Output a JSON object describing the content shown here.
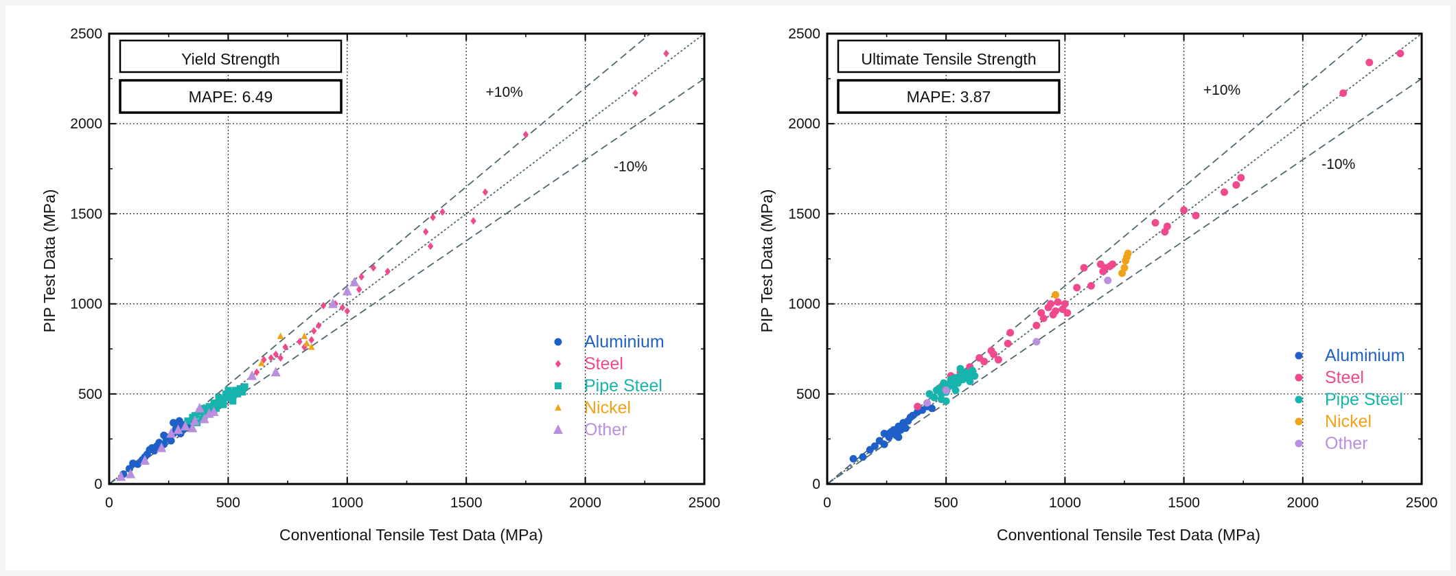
{
  "figure": {
    "colors": {
      "aluminium": "#1f5fc8",
      "steel": "#ee4a8d",
      "pipe_steel": "#17b3ad",
      "nickel": "#f0a21a",
      "other": "#b98fde",
      "ref_line": "#4e6770"
    }
  },
  "chart_data": [
    {
      "type": "scatter",
      "title": "Yield Strength",
      "mape_label": "MAPE: 6.49",
      "xlabel": "Conventional Tensile Test Data (MPa)",
      "ylabel": "PIP Test Data (MPa)",
      "xlim": [
        0,
        2500
      ],
      "ylim": [
        0,
        2500
      ],
      "xticks": [
        0,
        500,
        1000,
        1500,
        2000,
        2500
      ],
      "yticks": [
        0,
        500,
        1000,
        1500,
        2000,
        2500
      ],
      "grid": true,
      "legend_position": "bottom-right",
      "annotations": [
        {
          "text": "+10%",
          "x": 1660,
          "y": 2150
        },
        {
          "text": "-10%",
          "x": 2190,
          "y": 1735
        }
      ],
      "reference_lines": [
        {
          "name": "+10%",
          "slope": 1.1,
          "style": "dashed"
        },
        {
          "name": "1:1",
          "slope": 1.0,
          "style": "dotted"
        },
        {
          "name": "-10%",
          "slope": 0.9,
          "style": "dashed"
        }
      ],
      "series": [
        {
          "name": "Aluminium",
          "color_key": "aluminium",
          "marker": "circle",
          "points": [
            [
              60,
              55
            ],
            [
              85,
              85
            ],
            [
              100,
              115
            ],
            [
              120,
              110
            ],
            [
              140,
              135
            ],
            [
              160,
              165
            ],
            [
              170,
              190
            ],
            [
              190,
              185
            ],
            [
              200,
              210
            ],
            [
              210,
              230
            ],
            [
              230,
              220
            ],
            [
              240,
              250
            ],
            [
              250,
              260
            ],
            [
              260,
              240
            ],
            [
              270,
              280
            ],
            [
              280,
              305
            ],
            [
              290,
              320
            ],
            [
              300,
              280
            ],
            [
              310,
              300
            ],
            [
              320,
              330
            ],
            [
              330,
              340
            ],
            [
              340,
              310
            ],
            [
              350,
              360
            ],
            [
              230,
              270
            ],
            [
              270,
              340
            ],
            [
              295,
              350
            ],
            [
              180,
              200
            ],
            [
              150,
              150
            ]
          ]
        },
        {
          "name": "Steel",
          "color_key": "steel",
          "marker": "diamond",
          "points": [
            [
              560,
              540
            ],
            [
              600,
              600
            ],
            [
              620,
              620
            ],
            [
              650,
              690
            ],
            [
              680,
              700
            ],
            [
              700,
              720
            ],
            [
              720,
              700
            ],
            [
              740,
              760
            ],
            [
              800,
              790
            ],
            [
              820,
              760
            ],
            [
              850,
              800
            ],
            [
              860,
              850
            ],
            [
              880,
              880
            ],
            [
              900,
              990
            ],
            [
              950,
              1000
            ],
            [
              980,
              980
            ],
            [
              1000,
              960
            ],
            [
              1050,
              1080
            ],
            [
              1060,
              1150
            ],
            [
              1110,
              1200
            ],
            [
              1170,
              1180
            ],
            [
              1330,
              1400
            ],
            [
              1350,
              1320
            ],
            [
              1360,
              1480
            ],
            [
              1400,
              1510
            ],
            [
              1530,
              1460
            ],
            [
              1580,
              1620
            ],
            [
              1750,
              1940
            ],
            [
              2210,
              2170
            ],
            [
              2340,
              2390
            ]
          ]
        },
        {
          "name": "Pipe Steel",
          "color_key": "pipe_steel",
          "marker": "square",
          "points": [
            [
              330,
              350
            ],
            [
              350,
              370
            ],
            [
              360,
              380
            ],
            [
              370,
              340
            ],
            [
              380,
              400
            ],
            [
              390,
              360
            ],
            [
              400,
              420
            ],
            [
              410,
              390
            ],
            [
              420,
              430
            ],
            [
              430,
              410
            ],
            [
              440,
              450
            ],
            [
              450,
              420
            ],
            [
              460,
              440
            ],
            [
              470,
              470
            ],
            [
              480,
              460
            ],
            [
              490,
              500
            ],
            [
              500,
              480
            ],
            [
              510,
              510
            ],
            [
              520,
              490
            ],
            [
              530,
              520
            ],
            [
              540,
              500
            ],
            [
              550,
              530
            ],
            [
              560,
              510
            ],
            [
              570,
              540
            ],
            [
              440,
              400
            ],
            [
              460,
              480
            ],
            [
              480,
              440
            ],
            [
              500,
              520
            ],
            [
              520,
              460
            ],
            [
              400,
              380
            ]
          ]
        },
        {
          "name": "Nickel",
          "color_key": "nickel",
          "marker": "triangle",
          "points": [
            [
              640,
              670
            ],
            [
              720,
              820
            ],
            [
              820,
              820
            ],
            [
              830,
              780
            ],
            [
              850,
              760
            ]
          ]
        },
        {
          "name": "Other",
          "color_key": "other",
          "marker": "triangle-large",
          "points": [
            [
              50,
              40
            ],
            [
              90,
              55
            ],
            [
              150,
              130
            ],
            [
              220,
              200
            ],
            [
              260,
              280
            ],
            [
              290,
              300
            ],
            [
              320,
              320
            ],
            [
              350,
              310
            ],
            [
              360,
              350
            ],
            [
              380,
              420
            ],
            [
              400,
              360
            ],
            [
              420,
              390
            ],
            [
              440,
              400
            ],
            [
              600,
              600
            ],
            [
              700,
              620
            ],
            [
              940,
              1000
            ],
            [
              1000,
              1070
            ],
            [
              1030,
              1120
            ]
          ]
        }
      ]
    },
    {
      "type": "scatter",
      "title": "Ultimate Tensile Strength",
      "mape_label": "MAPE: 3.87",
      "xlabel": "Conventional Tensile Test Data (MPa)",
      "ylabel": "PIP Test Data (MPa)",
      "xlim": [
        0,
        2500
      ],
      "ylim": [
        0,
        2500
      ],
      "xticks": [
        0,
        500,
        1000,
        1500,
        2000,
        2500
      ],
      "yticks": [
        0,
        500,
        1000,
        1500,
        2000,
        2500
      ],
      "grid": true,
      "legend_position": "bottom-right",
      "annotations": [
        {
          "text": "+10%",
          "x": 1660,
          "y": 2160
        },
        {
          "text": "-10%",
          "x": 2150,
          "y": 1750
        }
      ],
      "reference_lines": [
        {
          "name": "+10%",
          "slope": 1.1,
          "style": "dashed"
        },
        {
          "name": "1:1",
          "slope": 1.0,
          "style": "dotted"
        },
        {
          "name": "-10%",
          "slope": 0.9,
          "style": "dashed"
        }
      ],
      "series": [
        {
          "name": "Aluminium",
          "color_key": "aluminium",
          "marker": "circle",
          "points": [
            [
              110,
              140
            ],
            [
              150,
              150
            ],
            [
              180,
              190
            ],
            [
              200,
              210
            ],
            [
              220,
              240
            ],
            [
              240,
              220
            ],
            [
              260,
              260
            ],
            [
              270,
              290
            ],
            [
              280,
              300
            ],
            [
              290,
              270
            ],
            [
              300,
              320
            ],
            [
              310,
              300
            ],
            [
              320,
              340
            ],
            [
              330,
              310
            ],
            [
              340,
              350
            ],
            [
              350,
              370
            ],
            [
              360,
              380
            ],
            [
              380,
              400
            ],
            [
              400,
              410
            ],
            [
              420,
              430
            ],
            [
              440,
              420
            ],
            [
              300,
              260
            ],
            [
              260,
              280
            ],
            [
              240,
              280
            ]
          ]
        },
        {
          "name": "Steel",
          "color_key": "steel",
          "marker": "circle",
          "points": [
            [
              380,
              430
            ],
            [
              480,
              540
            ],
            [
              520,
              600
            ],
            [
              560,
              620
            ],
            [
              600,
              650
            ],
            [
              640,
              700
            ],
            [
              660,
              680
            ],
            [
              690,
              740
            ],
            [
              700,
              720
            ],
            [
              720,
              690
            ],
            [
              760,
              780
            ],
            [
              770,
              840
            ],
            [
              880,
              880
            ],
            [
              900,
              950
            ],
            [
              910,
              920
            ],
            [
              930,
              980
            ],
            [
              940,
              1000
            ],
            [
              950,
              940
            ],
            [
              960,
              960
            ],
            [
              970,
              1010
            ],
            [
              990,
              970
            ],
            [
              1000,
              1000
            ],
            [
              1010,
              950
            ],
            [
              1050,
              1090
            ],
            [
              1080,
              1200
            ],
            [
              1110,
              1100
            ],
            [
              1150,
              1220
            ],
            [
              1160,
              1180
            ],
            [
              1170,
              1200
            ],
            [
              1190,
              1210
            ],
            [
              1200,
              1220
            ],
            [
              1380,
              1450
            ],
            [
              1420,
              1400
            ],
            [
              1430,
              1430
            ],
            [
              1500,
              1520
            ],
            [
              1550,
              1490
            ],
            [
              1670,
              1620
            ],
            [
              1720,
              1660
            ],
            [
              1740,
              1700
            ],
            [
              2170,
              2170
            ],
            [
              2280,
              2340
            ],
            [
              2410,
              2390
            ]
          ]
        },
        {
          "name": "Pipe Steel",
          "color_key": "pipe_steel",
          "marker": "circle",
          "points": [
            [
              430,
              500
            ],
            [
              450,
              480
            ],
            [
              460,
              520
            ],
            [
              470,
              530
            ],
            [
              480,
              500
            ],
            [
              490,
              560
            ],
            [
              500,
              510
            ],
            [
              510,
              540
            ],
            [
              520,
              570
            ],
            [
              530,
              550
            ],
            [
              540,
              590
            ],
            [
              550,
              560
            ],
            [
              560,
              600
            ],
            [
              570,
              580
            ],
            [
              580,
              620
            ],
            [
              590,
              590
            ],
            [
              600,
              610
            ],
            [
              610,
              630
            ],
            [
              620,
              600
            ],
            [
              500,
              460
            ],
            [
              520,
              580
            ],
            [
              540,
              520
            ],
            [
              560,
              640
            ],
            [
              480,
              470
            ],
            [
              600,
              570
            ]
          ]
        },
        {
          "name": "Nickel",
          "color_key": "nickel",
          "marker": "circle",
          "points": [
            [
              960,
              1050
            ],
            [
              1240,
              1170
            ],
            [
              1250,
              1200
            ],
            [
              1255,
              1240
            ],
            [
              1260,
              1260
            ],
            [
              1265,
              1280
            ]
          ]
        },
        {
          "name": "Other",
          "color_key": "other",
          "marker": "circle",
          "points": [
            [
              420,
              450
            ],
            [
              500,
              520
            ],
            [
              880,
              790
            ],
            [
              1180,
              1130
            ]
          ]
        }
      ]
    }
  ]
}
